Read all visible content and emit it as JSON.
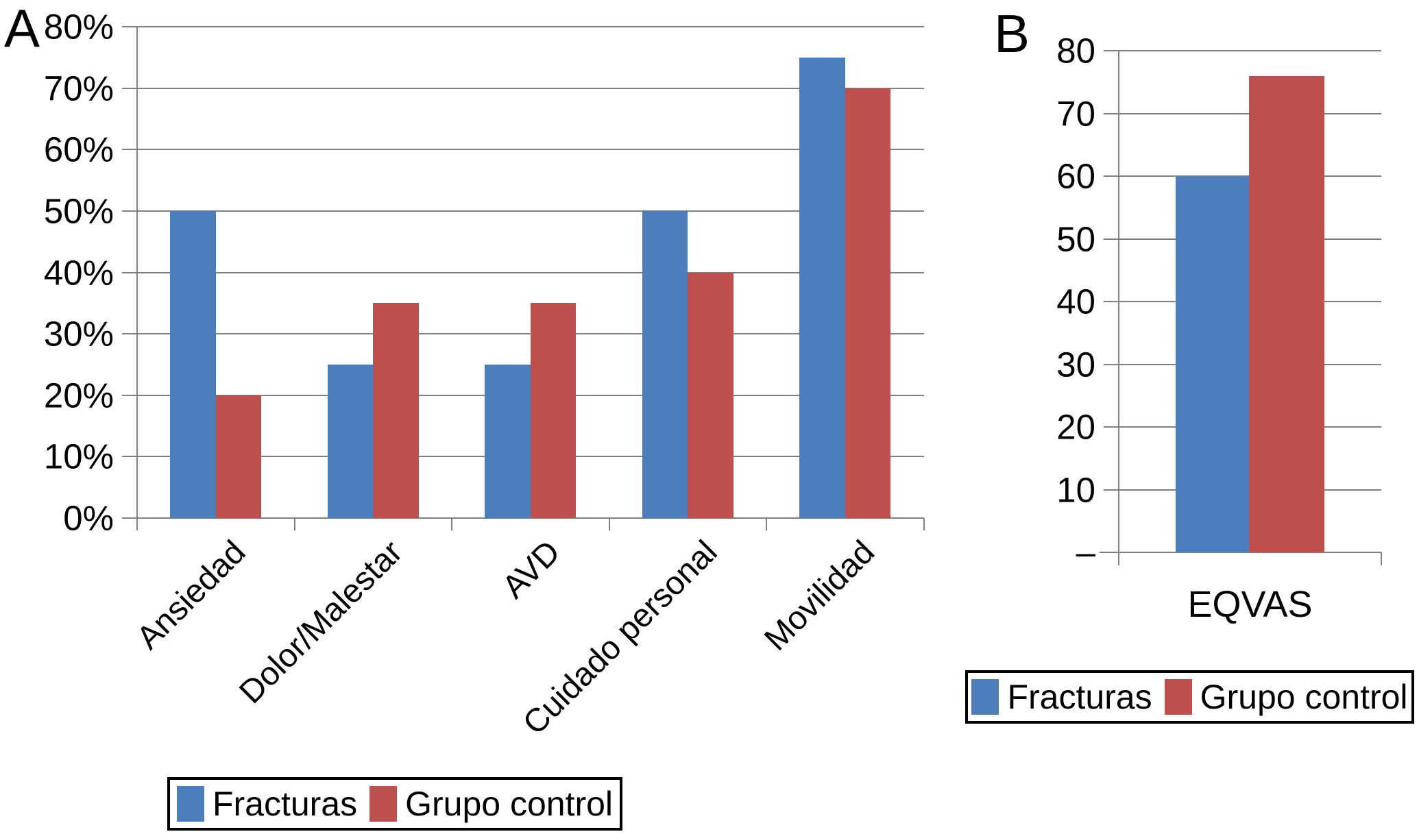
{
  "figure": {
    "panel_a_label": "A",
    "panel_b_label": "B",
    "legend": {
      "series1": "Fracturas",
      "series2": "Grupo control"
    },
    "colors": {
      "fracturas": "#4C7DBD",
      "grupo_control": "#C0504D",
      "gridline": "#808080",
      "axis": "#808080",
      "text": "#000000",
      "legend_border": "#000000",
      "background": "#FFFFFF"
    }
  },
  "chart_data": [
    {
      "id": "A",
      "type": "bar",
      "title": "",
      "xlabel": "",
      "ylabel": "",
      "categories": [
        "Ansiedad",
        "Dolor/Malestar",
        "AVD",
        "Cuidado personal",
        "Movilidad"
      ],
      "series": [
        {
          "name": "Fracturas",
          "color": "#4C7DBD",
          "values": [
            50,
            25,
            25,
            50,
            75
          ]
        },
        {
          "name": "Grupo control",
          "color": "#C0504D",
          "values": [
            20,
            35,
            35,
            40,
            70
          ]
        }
      ],
      "y_tick_labels": [
        "80%",
        "70%",
        "60%",
        "50%",
        "40%",
        "30%",
        "20%",
        "10%",
        "0%"
      ],
      "ylim": [
        0,
        80
      ],
      "unit": "percent",
      "grid": true,
      "legend_position": "bottom",
      "category_label_rotation_deg": 45
    },
    {
      "id": "B",
      "type": "bar",
      "title": "",
      "xlabel": "",
      "ylabel": "",
      "categories": [
        "EQVAS"
      ],
      "series": [
        {
          "name": "Fracturas",
          "color": "#4C7DBD",
          "values": [
            60
          ]
        },
        {
          "name": "Grupo control",
          "color": "#C0504D",
          "values": [
            76
          ]
        }
      ],
      "y_tick_labels": [
        "80",
        "70",
        "60",
        "50",
        "40",
        "30",
        "20",
        "10",
        "–"
      ],
      "ylim": [
        0,
        80
      ],
      "unit": "score",
      "grid": true,
      "legend_position": "bottom",
      "category_label_rotation_deg": 0
    }
  ]
}
